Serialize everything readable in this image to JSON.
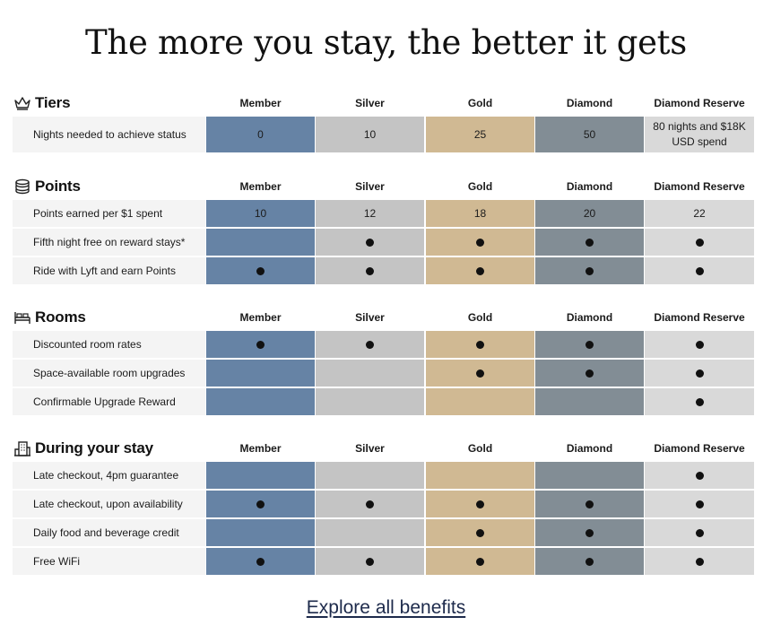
{
  "page_title": "The more you stay, the better it gets",
  "colors": {
    "member": "#6683a5",
    "silver": "#c4c4c4",
    "gold": "#d0b993",
    "diamond": "#828d95",
    "diamond_reserve": "#d9d9d9",
    "label_bg": "#f4f4f4"
  },
  "columns": [
    "Member",
    "Silver",
    "Gold",
    "Diamond",
    "Diamond Reserve"
  ],
  "sections": {
    "tiers": {
      "title": "Tiers",
      "icon": "crown-icon",
      "rows": [
        {
          "label": "Nights needed to achieve status",
          "values": [
            "0",
            "10",
            "25",
            "50",
            "80 nights and $18K USD spend"
          ]
        }
      ]
    },
    "points": {
      "title": "Points",
      "icon": "coins-icon",
      "rows": [
        {
          "label": "Points earned per $1 spent",
          "values": [
            "10",
            "12",
            "18",
            "20",
            "22"
          ]
        },
        {
          "label": "Fifth night free on reward stays*",
          "values": [
            false,
            true,
            true,
            true,
            true
          ]
        },
        {
          "label": "Ride with Lyft and earn Points",
          "values": [
            true,
            true,
            true,
            true,
            true
          ]
        }
      ]
    },
    "rooms": {
      "title": "Rooms",
      "icon": "bed-icon",
      "rows": [
        {
          "label": "Discounted room rates",
          "values": [
            true,
            true,
            true,
            true,
            true
          ]
        },
        {
          "label": "Space-available room upgrades",
          "values": [
            false,
            false,
            true,
            true,
            true
          ]
        },
        {
          "label": "Confirmable Upgrade Reward",
          "values": [
            false,
            false,
            false,
            false,
            true
          ]
        }
      ]
    },
    "stay": {
      "title": "During your stay",
      "icon": "building-icon",
      "rows": [
        {
          "label": "Late checkout, 4pm guarantee",
          "values": [
            false,
            false,
            false,
            false,
            true
          ]
        },
        {
          "label": "Late checkout, upon availability",
          "values": [
            true,
            true,
            true,
            true,
            true
          ]
        },
        {
          "label": "Daily food and beverage credit",
          "values": [
            false,
            false,
            true,
            true,
            true
          ]
        },
        {
          "label": "Free WiFi",
          "values": [
            true,
            true,
            true,
            true,
            true
          ]
        }
      ]
    }
  },
  "cta": {
    "explore_label": "Explore all benefits"
  }
}
